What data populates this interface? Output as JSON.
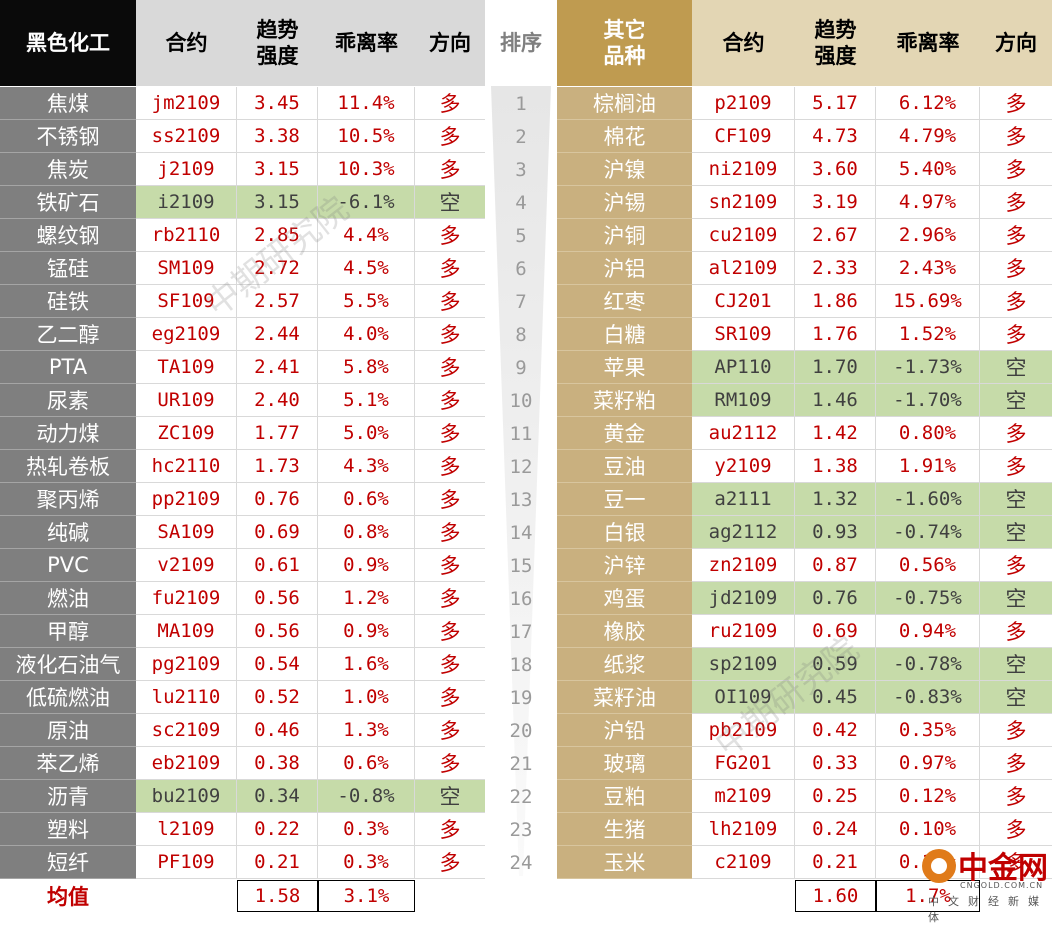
{
  "headers": {
    "left_sector": "黑色化工",
    "contract": "合约",
    "trend_strength": [
      "趋势",
      "强度"
    ],
    "deviation": "乖离率",
    "direction": "方向",
    "rank": "排序",
    "right_sector": [
      "其它",
      "品种"
    ]
  },
  "left_rows": [
    {
      "name": "焦煤",
      "contract": "jm2109",
      "strength": "3.45",
      "deviation": "11.4%",
      "direction": "多",
      "short": false
    },
    {
      "name": "不锈钢",
      "contract": "ss2109",
      "strength": "3.38",
      "deviation": "10.5%",
      "direction": "多",
      "short": false
    },
    {
      "name": "焦炭",
      "contract": "j2109",
      "strength": "3.15",
      "deviation": "10.3%",
      "direction": "多",
      "short": false
    },
    {
      "name": "铁矿石",
      "contract": "i2109",
      "strength": "3.15",
      "deviation": "-6.1%",
      "direction": "空",
      "short": true
    },
    {
      "name": "螺纹钢",
      "contract": "rb2110",
      "strength": "2.85",
      "deviation": "4.4%",
      "direction": "多",
      "short": false
    },
    {
      "name": "锰硅",
      "contract": "SM109",
      "strength": "2.72",
      "deviation": "4.5%",
      "direction": "多",
      "short": false
    },
    {
      "name": "硅铁",
      "contract": "SF109",
      "strength": "2.57",
      "deviation": "5.5%",
      "direction": "多",
      "short": false
    },
    {
      "name": "乙二醇",
      "contract": "eg2109",
      "strength": "2.44",
      "deviation": "4.0%",
      "direction": "多",
      "short": false
    },
    {
      "name": "PTA",
      "contract": "TA109",
      "strength": "2.41",
      "deviation": "5.8%",
      "direction": "多",
      "short": false
    },
    {
      "name": "尿素",
      "contract": "UR109",
      "strength": "2.40",
      "deviation": "5.1%",
      "direction": "多",
      "short": false
    },
    {
      "name": "动力煤",
      "contract": "ZC109",
      "strength": "1.77",
      "deviation": "5.0%",
      "direction": "多",
      "short": false
    },
    {
      "name": "热轧卷板",
      "contract": "hc2110",
      "strength": "1.73",
      "deviation": "4.3%",
      "direction": "多",
      "short": false
    },
    {
      "name": "聚丙烯",
      "contract": "pp2109",
      "strength": "0.76",
      "deviation": "0.6%",
      "direction": "多",
      "short": false
    },
    {
      "name": "纯碱",
      "contract": "SA109",
      "strength": "0.69",
      "deviation": "0.8%",
      "direction": "多",
      "short": false
    },
    {
      "name": "PVC",
      "contract": "v2109",
      "strength": "0.61",
      "deviation": "0.9%",
      "direction": "多",
      "short": false
    },
    {
      "name": "燃油",
      "contract": "fu2109",
      "strength": "0.56",
      "deviation": "1.2%",
      "direction": "多",
      "short": false
    },
    {
      "name": "甲醇",
      "contract": "MA109",
      "strength": "0.56",
      "deviation": "0.9%",
      "direction": "多",
      "short": false
    },
    {
      "name": "液化石油气",
      "contract": "pg2109",
      "strength": "0.54",
      "deviation": "1.6%",
      "direction": "多",
      "short": false
    },
    {
      "name": "低硫燃油",
      "contract": "lu2110",
      "strength": "0.52",
      "deviation": "1.0%",
      "direction": "多",
      "short": false
    },
    {
      "name": "原油",
      "contract": "sc2109",
      "strength": "0.46",
      "deviation": "1.3%",
      "direction": "多",
      "short": false
    },
    {
      "name": "苯乙烯",
      "contract": "eb2109",
      "strength": "0.38",
      "deviation": "0.6%",
      "direction": "多",
      "short": false
    },
    {
      "name": "沥青",
      "contract": "bu2109",
      "strength": "0.34",
      "deviation": "-0.8%",
      "direction": "空",
      "short": true
    },
    {
      "name": "塑料",
      "contract": "l2109",
      "strength": "0.22",
      "deviation": "0.3%",
      "direction": "多",
      "short": false
    },
    {
      "name": "短纤",
      "contract": "PF109",
      "strength": "0.21",
      "deviation": "0.3%",
      "direction": "多",
      "short": false
    }
  ],
  "ranks": [
    "1",
    "2",
    "3",
    "4",
    "5",
    "6",
    "7",
    "8",
    "9",
    "10",
    "11",
    "12",
    "13",
    "14",
    "15",
    "16",
    "17",
    "18",
    "19",
    "20",
    "21",
    "22",
    "23",
    "24"
  ],
  "right_rows": [
    {
      "name": "棕榈油",
      "contract": "p2109",
      "strength": "5.17",
      "deviation": "6.12%",
      "direction": "多",
      "short": false
    },
    {
      "name": "棉花",
      "contract": "CF109",
      "strength": "4.73",
      "deviation": "4.79%",
      "direction": "多",
      "short": false
    },
    {
      "name": "沪镍",
      "contract": "ni2109",
      "strength": "3.60",
      "deviation": "5.40%",
      "direction": "多",
      "short": false
    },
    {
      "name": "沪锡",
      "contract": "sn2109",
      "strength": "3.19",
      "deviation": "4.97%",
      "direction": "多",
      "short": false
    },
    {
      "name": "沪铜",
      "contract": "cu2109",
      "strength": "2.67",
      "deviation": "2.96%",
      "direction": "多",
      "short": false
    },
    {
      "name": "沪铝",
      "contract": "al2109",
      "strength": "2.33",
      "deviation": "2.43%",
      "direction": "多",
      "short": false
    },
    {
      "name": "红枣",
      "contract": "CJ201",
      "strength": "1.86",
      "deviation": "15.69%",
      "direction": "多",
      "short": false
    },
    {
      "name": "白糖",
      "contract": "SR109",
      "strength": "1.76",
      "deviation": "1.52%",
      "direction": "多",
      "short": false
    },
    {
      "name": "苹果",
      "contract": "AP110",
      "strength": "1.70",
      "deviation": "-1.73%",
      "direction": "空",
      "short": true
    },
    {
      "name": "菜籽粕",
      "contract": "RM109",
      "strength": "1.46",
      "deviation": "-1.70%",
      "direction": "空",
      "short": true
    },
    {
      "name": "黄金",
      "contract": "au2112",
      "strength": "1.42",
      "deviation": "0.80%",
      "direction": "多",
      "short": false
    },
    {
      "name": "豆油",
      "contract": "y2109",
      "strength": "1.38",
      "deviation": "1.91%",
      "direction": "多",
      "short": false
    },
    {
      "name": "豆一",
      "contract": "a2111",
      "strength": "1.32",
      "deviation": "-1.60%",
      "direction": "空",
      "short": true
    },
    {
      "name": "白银",
      "contract": "ag2112",
      "strength": "0.93",
      "deviation": "-0.74%",
      "direction": "空",
      "short": true
    },
    {
      "name": "沪锌",
      "contract": "zn2109",
      "strength": "0.87",
      "deviation": "0.56%",
      "direction": "多",
      "short": false
    },
    {
      "name": "鸡蛋",
      "contract": "jd2109",
      "strength": "0.76",
      "deviation": "-0.75%",
      "direction": "空",
      "short": true
    },
    {
      "name": "橡胶",
      "contract": "ru2109",
      "strength": "0.69",
      "deviation": "0.94%",
      "direction": "多",
      "short": false
    },
    {
      "name": "纸浆",
      "contract": "sp2109",
      "strength": "0.59",
      "deviation": "-0.78%",
      "direction": "空",
      "short": true
    },
    {
      "name": "菜籽油",
      "contract": "OI109",
      "strength": "0.45",
      "deviation": "-0.83%",
      "direction": "空",
      "short": true
    },
    {
      "name": "沪铅",
      "contract": "pb2109",
      "strength": "0.42",
      "deviation": "0.35%",
      "direction": "多",
      "short": false
    },
    {
      "name": "玻璃",
      "contract": "FG201",
      "strength": "0.33",
      "deviation": "0.97%",
      "direction": "多",
      "short": false
    },
    {
      "name": "豆粕",
      "contract": "m2109",
      "strength": "0.25",
      "deviation": "0.12%",
      "direction": "多",
      "short": false
    },
    {
      "name": "生猪",
      "contract": "lh2109",
      "strength": "0.24",
      "deviation": "0.10%",
      "direction": "多",
      "short": false
    },
    {
      "name": "玉米",
      "contract": "c2109",
      "strength": "0.21",
      "deviation": "0.10%",
      "direction": "多",
      "short": false
    }
  ],
  "average": {
    "label": "均值",
    "left_strength": "1.58",
    "left_deviation": "3.1%",
    "right_strength": "1.60",
    "right_deviation": "1.7%"
  },
  "watermark": "中期研究院",
  "logo": {
    "name": "中金网",
    "domain": "CNGOLD.COM.CN",
    "tagline": "中文财经新媒体",
    "color": "#e07b1a"
  },
  "colors": {
    "value_red": "#c00000",
    "short_highlight": "#c6dba9",
    "left_name_bg": "#7f7f7f",
    "right_name_bg": "#c9b07f",
    "right_header_bg": "#bf9b50"
  }
}
